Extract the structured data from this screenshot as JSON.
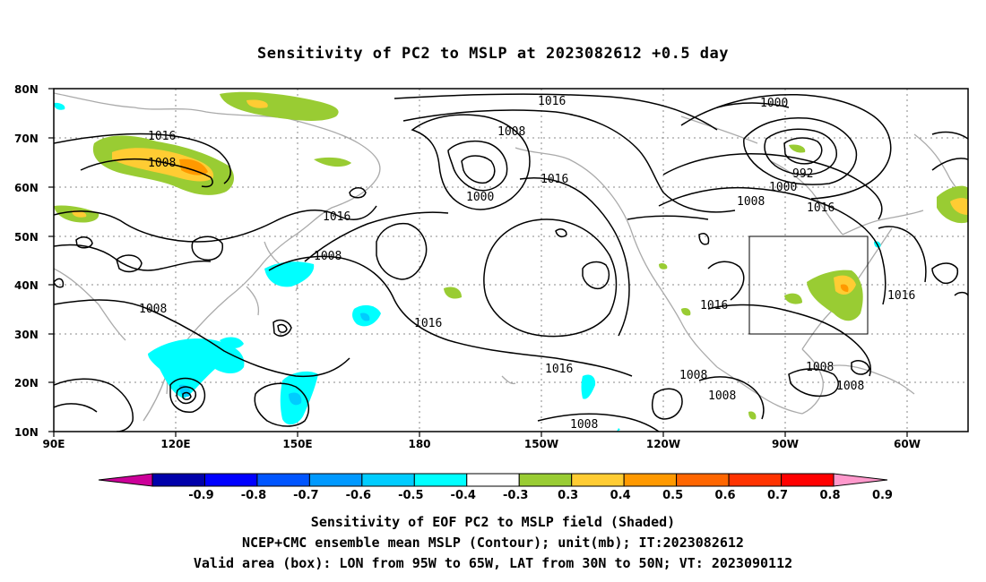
{
  "title": "Sensitivity of PC2 to MSLP at 2023082612 +0.5 day",
  "map": {
    "lon_range": [
      "90E",
      "50W"
    ],
    "lat_range": [
      "10N",
      "80N"
    ],
    "lat_labels": [
      "80N",
      "70N",
      "60N",
      "50N",
      "40N",
      "30N",
      "20N",
      "10N"
    ],
    "lon_labels": [
      "90E",
      "120E",
      "150E",
      "180",
      "150W",
      "120W",
      "90W",
      "60W"
    ],
    "valid_box": {
      "lon": [
        "95W",
        "65W"
      ],
      "lat": [
        "30N",
        "50N"
      ]
    },
    "contour_labels": [
      "1016",
      "1000",
      "1008",
      "1016",
      "1008",
      "1000",
      "1016",
      "992",
      "1000",
      "1008",
      "1016",
      "1008",
      "1016",
      "1008",
      "1016",
      "1016",
      "1016",
      "1016",
      "1008",
      "1008",
      "1008",
      "1008",
      "1008"
    ],
    "colors": {
      "sens_0_3_to_0_4": "#99cc33",
      "sens_0_4_to_0_5": "#ffcc33",
      "sens_0_5_to_0_6": "#ff9900",
      "sens_neg_0_4_to_neg_0_3": "#00ffff",
      "sens_neg_0_5_to_neg_0_4": "#00ccff",
      "coastline": "#aaaaaa",
      "contour": "#000000"
    }
  },
  "colorbar": {
    "labels": [
      "-0.9",
      "-0.8",
      "-0.7",
      "-0.6",
      "-0.5",
      "-0.4",
      "-0.3",
      "0.3",
      "0.4",
      "0.5",
      "0.6",
      "0.7",
      "0.8",
      "0.9"
    ],
    "colors": [
      "#cc0099",
      "#0000aa",
      "#0000ff",
      "#0055ff",
      "#0099ff",
      "#00ccff",
      "#00ffff",
      "#ffffff",
      "#99cc33",
      "#ffcc33",
      "#ff9900",
      "#ff6600",
      "#ff3300",
      "#ff0000",
      "#ff99cc"
    ]
  },
  "captions": [
    "Sensitivity of EOF PC2 to MSLP field (Shaded)",
    "NCEP+CMC ensemble mean MSLP (Contour); unit(mb); IT:2023082612",
    "Valid area (box): LON from 95W to 65W, LAT from 30N to 50N; VT: 2023090112"
  ]
}
